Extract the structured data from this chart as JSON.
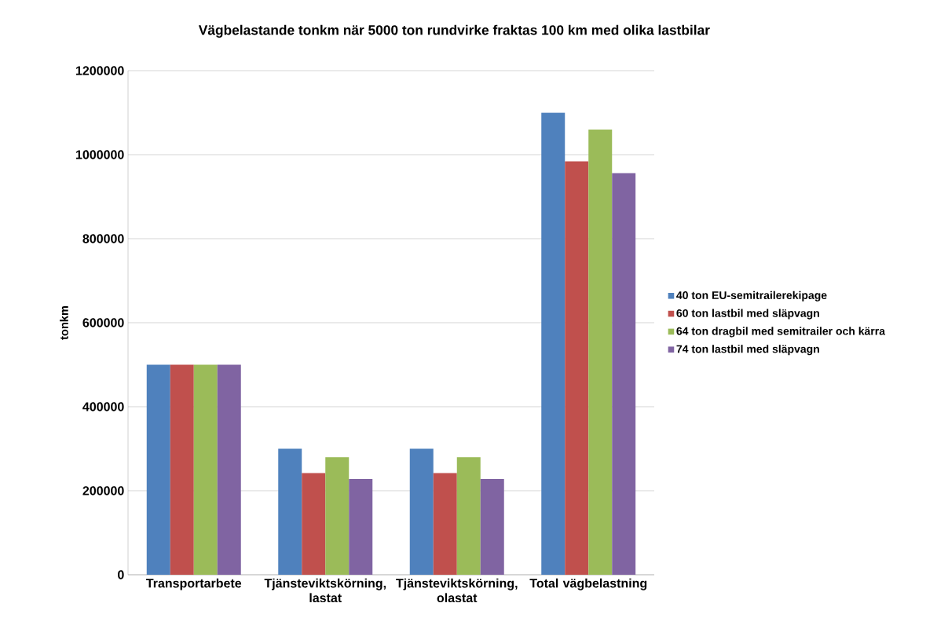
{
  "chart_data": {
    "type": "bar",
    "title": "Vägbelastande tonkm när 5000 ton rundvirke fraktas 100 km med olika lastbilar",
    "ylabel": "tonkm",
    "categories": [
      "Transportarbete",
      "Tjänsteviktskörning, lastat",
      "Tjänsteviktskörning, olastat",
      "Total vägbelastning"
    ],
    "series": [
      {
        "name": "40 ton EU-semitrailerekipage",
        "color": "#4f81bd",
        "values": [
          500000,
          300000,
          300000,
          1100000
        ]
      },
      {
        "name": "60 ton lastbil med släpvagn",
        "color": "#c0504d",
        "values": [
          500000,
          242000,
          242000,
          984000
        ]
      },
      {
        "name": "64 ton dragbil med semitrailer och kärra",
        "color": "#9bbb59",
        "values": [
          500000,
          280000,
          280000,
          1060000
        ]
      },
      {
        "name": "74 ton lastbil med släpvagn",
        "color": "#8064a2",
        "values": [
          500000,
          228000,
          228000,
          956000
        ]
      }
    ],
    "ylim": [
      0,
      1200000
    ],
    "yticks": [
      0,
      200000,
      400000,
      600000,
      800000,
      1000000,
      1200000
    ],
    "grid": "y",
    "legend": "right"
  }
}
